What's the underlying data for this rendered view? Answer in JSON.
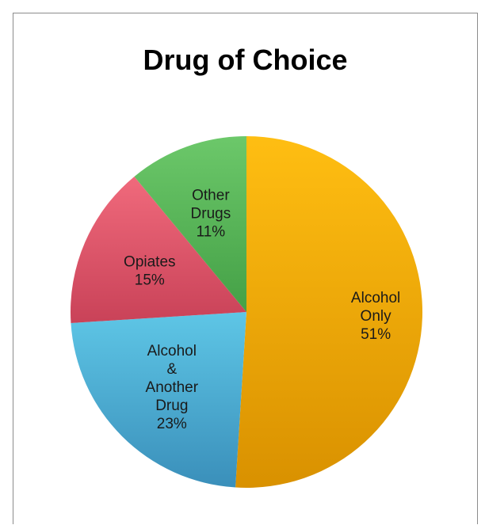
{
  "chart_data": {
    "type": "pie",
    "title": "Drug of Choice",
    "categories": [
      "Alcohol Only",
      "Alcohol & Another Drug",
      "Opiates",
      "Other Drugs"
    ],
    "values": [
      51,
      23,
      15,
      11
    ],
    "unit": "%",
    "data_labels": [
      [
        "Alcohol",
        "Only",
        "51%"
      ],
      [
        "Alcohol",
        "&",
        "Another",
        "Drug",
        "23%"
      ],
      [
        "Opiates",
        "15%"
      ],
      [
        "Other",
        "Drugs",
        "11%"
      ]
    ],
    "colors": [
      [
        "#ffbe12",
        "#d99100"
      ],
      [
        "#5ec6e6",
        "#3a8fba"
      ],
      [
        "#f06a7c",
        "#c94258"
      ],
      [
        "#6cc86a",
        "#44a046"
      ]
    ],
    "start_angle_deg": 0,
    "direction": "clockwise"
  }
}
